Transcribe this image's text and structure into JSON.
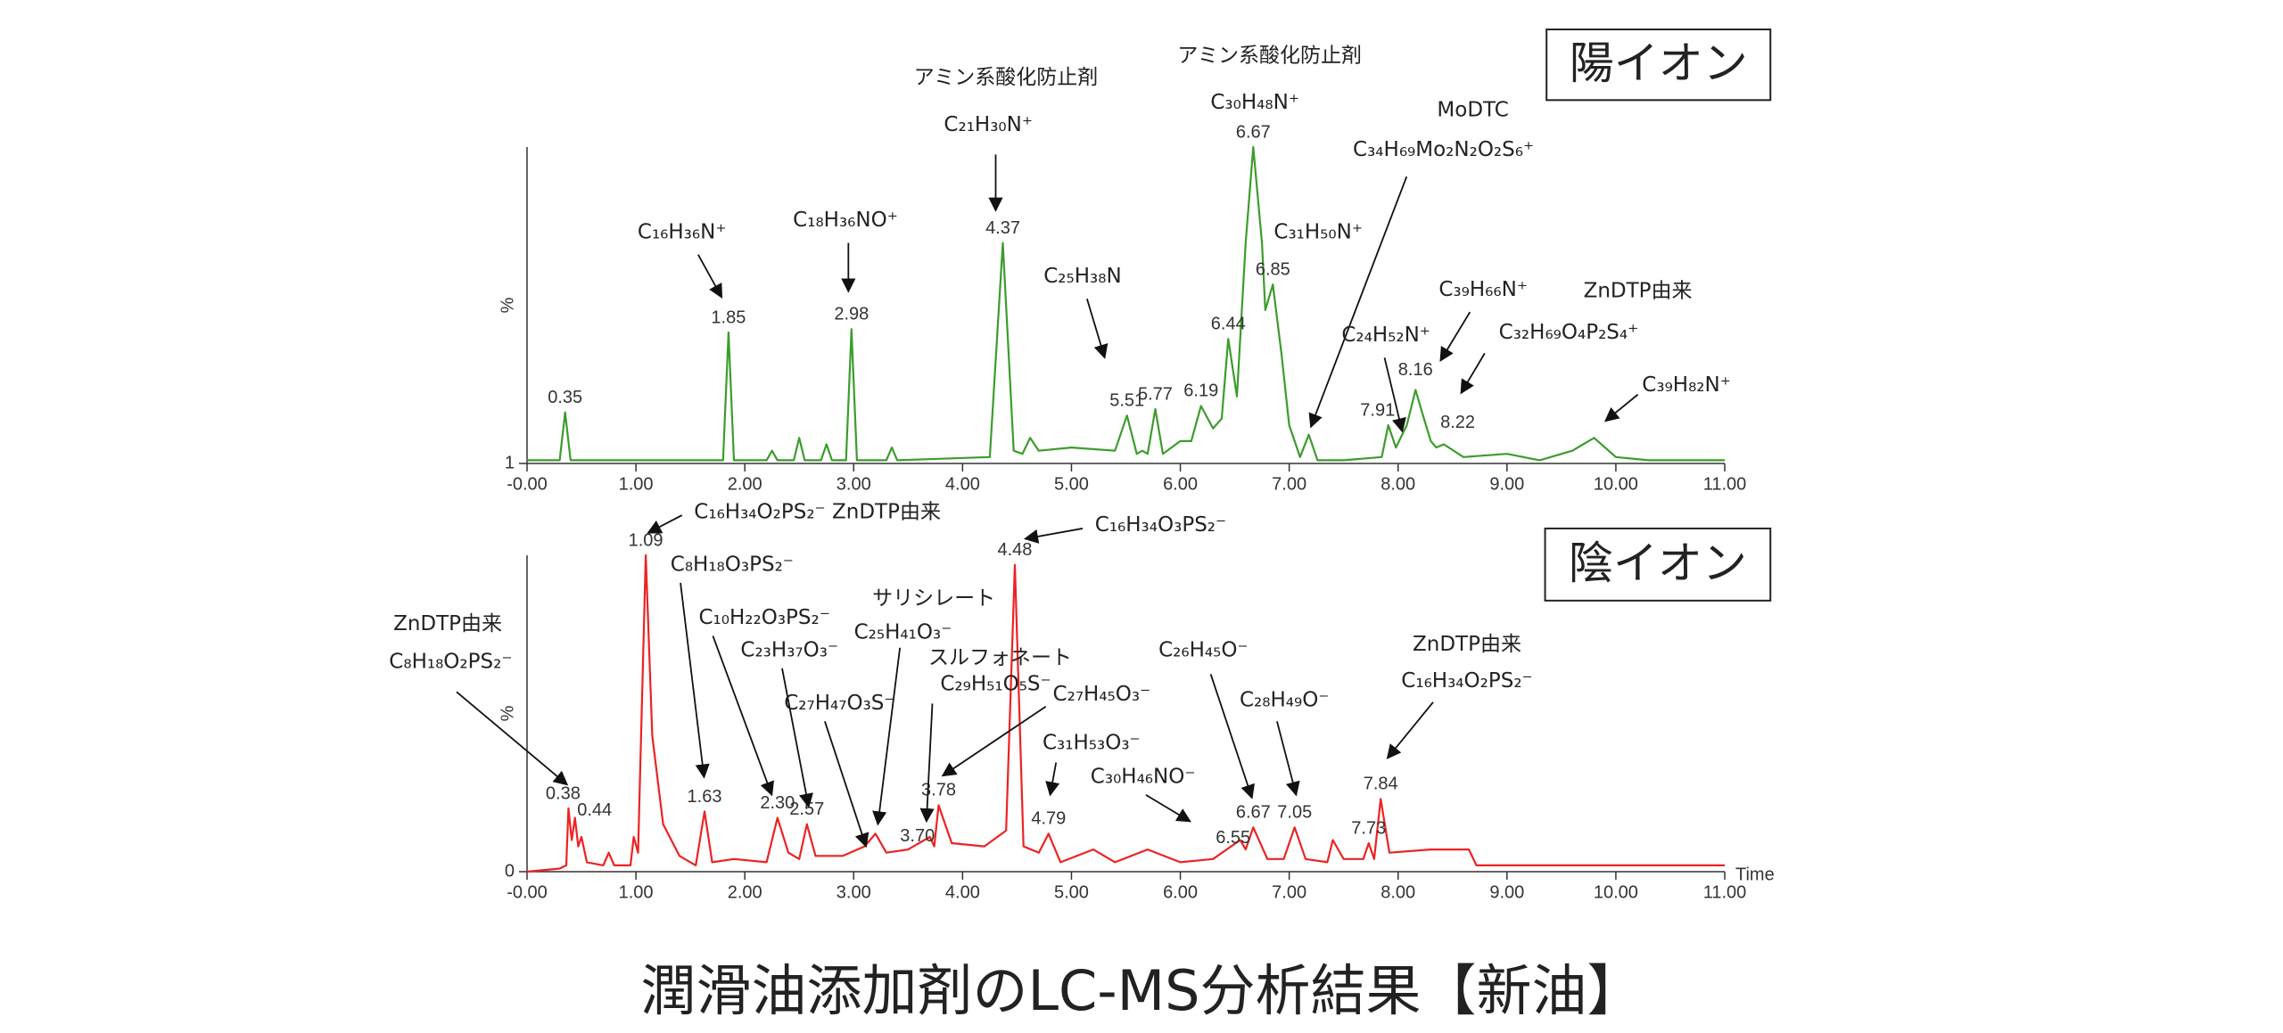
{
  "caption": "潤滑油添加剤のLC-MS分析結果【新油】",
  "chart_data": [
    {
      "type": "line",
      "title": "陽イオン",
      "y_label": "%",
      "color": "#3c9c2c",
      "xlim": [
        0,
        11
      ],
      "ylim": [
        1,
        100
      ],
      "yticks": [
        1
      ],
      "xticks": [
        {
          "value": 0,
          "label": "-0.00"
        },
        {
          "value": 1,
          "label": "1.00"
        },
        {
          "value": 2,
          "label": "2.00"
        },
        {
          "value": 3,
          "label": "3.00"
        },
        {
          "value": 4,
          "label": "4.00"
        },
        {
          "value": 5,
          "label": "5.00"
        },
        {
          "value": 6,
          "label": "6.00"
        },
        {
          "value": 7,
          "label": "7.00"
        },
        {
          "value": 8,
          "label": "8.00"
        },
        {
          "value": 9,
          "label": "9.00"
        },
        {
          "value": 10,
          "label": "10.00"
        },
        {
          "value": 11,
          "label": "11.00"
        }
      ],
      "x": [
        0,
        0.3,
        0.35,
        0.4,
        1.8,
        1.85,
        1.9,
        2.2,
        2.25,
        2.3,
        2.45,
        2.5,
        2.55,
        2.7,
        2.75,
        2.8,
        2.93,
        2.98,
        3.03,
        3.3,
        3.35,
        3.4,
        4.25,
        4.37,
        4.47,
        4.55,
        4.62,
        4.7,
        5.0,
        5.4,
        5.51,
        5.6,
        5.65,
        5.7,
        5.77,
        5.84,
        6.0,
        6.1,
        6.19,
        6.3,
        6.38,
        6.44,
        6.52,
        6.6,
        6.67,
        6.75,
        6.78,
        6.85,
        6.93,
        7.0,
        7.1,
        7.18,
        7.26,
        7.5,
        7.85,
        7.91,
        7.98,
        8.08,
        8.16,
        8.22,
        8.3,
        8.35,
        8.42,
        8.6,
        9.0,
        9.3,
        9.6,
        9.8,
        10.0,
        10.3,
        11.0
      ],
      "values": [
        2,
        2,
        17,
        2,
        2,
        42,
        2,
        2,
        5,
        2,
        2,
        9,
        2,
        2,
        7,
        2,
        2,
        43,
        2,
        2,
        6,
        2,
        3,
        70,
        5,
        4,
        9,
        5,
        6,
        5,
        16,
        4,
        5,
        4,
        18,
        4,
        8,
        8,
        19,
        12,
        15,
        40,
        22,
        70,
        100,
        70,
        49,
        57,
        35,
        13,
        3,
        10,
        2,
        2,
        3,
        13,
        6,
        13,
        24,
        17,
        8,
        6,
        7,
        3,
        4,
        2,
        5,
        9,
        3,
        2,
        2
      ],
      "peak_labels": [
        {
          "x": 0.35,
          "y": 17,
          "label": "0.35"
        },
        {
          "x": 1.85,
          "y": 42,
          "label": "1.85"
        },
        {
          "x": 2.98,
          "y": 43,
          "label": "2.98"
        },
        {
          "x": 4.37,
          "y": 70,
          "label": "4.37"
        },
        {
          "x": 5.51,
          "y": 16,
          "label": "5.51"
        },
        {
          "x": 5.77,
          "y": 18,
          "label": "5.77"
        },
        {
          "x": 6.19,
          "y": 19,
          "label": "6.19"
        },
        {
          "x": 6.44,
          "y": 40,
          "label": "6.44"
        },
        {
          "x": 6.67,
          "y": 100,
          "label": "6.67"
        },
        {
          "x": 6.85,
          "y": 57,
          "label": "6.85"
        },
        {
          "x": 7.91,
          "y": 13,
          "label": "7.91"
        },
        {
          "x": 8.16,
          "y": 24,
          "label": "8.16"
        },
        {
          "x": 8.22,
          "y": 17,
          "label": "8.22"
        }
      ],
      "annotations": [
        {
          "lines": [
            "アミン系酸化防止剤",
            "C₂₁H₃₀N⁺"
          ]
        },
        {
          "lines": [
            "アミン系酸化防止剤",
            "C₃₀H₄₈N⁺"
          ]
        },
        {
          "lines": [
            "MoDTC",
            "C₃₄H₆₉Mo₂N₂O₂S₆⁺"
          ]
        },
        {
          "lines": [
            "C₁₆H₃₆N⁺"
          ]
        },
        {
          "lines": [
            "C₁₈H₃₆NO⁺"
          ]
        },
        {
          "lines": [
            "C₂₅H₃₈N"
          ]
        },
        {
          "lines": [
            "C₃₁H₅₀N⁺"
          ]
        },
        {
          "lines": [
            "C₂₄H₅₂N⁺"
          ]
        },
        {
          "lines": [
            "C₃₉H₆₆N⁺"
          ]
        },
        {
          "lines": [
            "ZnDTP由来",
            "C₃₂H₆₉O₄P₂S₄⁺"
          ]
        },
        {
          "lines": [
            "C₃₉H₈₂N⁺"
          ]
        }
      ]
    },
    {
      "type": "line",
      "title": "陰イオン",
      "y_label": "%",
      "x_label": "Time",
      "color": "#ee2222",
      "xlim": [
        0,
        11
      ],
      "ylim": [
        0,
        100
      ],
      "yticks": [
        0
      ],
      "xticks": [
        {
          "value": 0,
          "label": "-0.00"
        },
        {
          "value": 1,
          "label": "1.00"
        },
        {
          "value": 2,
          "label": "2.00"
        },
        {
          "value": 3,
          "label": "3.00"
        },
        {
          "value": 4,
          "label": "4.00"
        },
        {
          "value": 5,
          "label": "5.00"
        },
        {
          "value": 6,
          "label": "6.00"
        },
        {
          "value": 7,
          "label": "7.00"
        },
        {
          "value": 8,
          "label": "8.00"
        },
        {
          "value": 9,
          "label": "9.00"
        },
        {
          "value": 10,
          "label": "10.00"
        },
        {
          "value": 11,
          "label": "11.00"
        }
      ],
      "x": [
        0,
        0.3,
        0.36,
        0.38,
        0.41,
        0.44,
        0.47,
        0.5,
        0.55,
        0.7,
        0.75,
        0.8,
        0.95,
        0.98,
        1.02,
        1.09,
        1.15,
        1.25,
        1.4,
        1.55,
        1.63,
        1.7,
        1.9,
        2.2,
        2.3,
        2.4,
        2.5,
        2.57,
        2.65,
        2.9,
        3.1,
        3.2,
        3.3,
        3.5,
        3.7,
        3.74,
        3.78,
        3.9,
        4.2,
        4.4,
        4.48,
        4.56,
        4.7,
        4.79,
        4.9,
        5.2,
        5.4,
        5.7,
        6.0,
        6.3,
        6.55,
        6.6,
        6.67,
        6.8,
        6.95,
        7.05,
        7.15,
        7.35,
        7.4,
        7.5,
        7.68,
        7.73,
        7.78,
        7.84,
        7.92,
        8.3,
        8.65,
        8.72,
        9.5,
        11
      ],
      "values": [
        0,
        1,
        2,
        20,
        10,
        17,
        8,
        11,
        3,
        2,
        6,
        2,
        2,
        11,
        6,
        100,
        43,
        15,
        5,
        2,
        19,
        3,
        4,
        3,
        17,
        6,
        4,
        15,
        5,
        5,
        8,
        12,
        6,
        7,
        11,
        8,
        21,
        9,
        8,
        13,
        97,
        8,
        6,
        12,
        3,
        7,
        3,
        7,
        3,
        4,
        10,
        7,
        14,
        4,
        4,
        14,
        4,
        3,
        10,
        4,
        4,
        9,
        4,
        23,
        6,
        7,
        7,
        2,
        2,
        2
      ],
      "peak_labels": [
        {
          "x": 0.38,
          "y": 20,
          "label": "0.38"
        },
        {
          "x": 0.44,
          "y": 17,
          "label": "0.44"
        },
        {
          "x": 1.09,
          "y": 100,
          "label": "1.09"
        },
        {
          "x": 1.63,
          "y": 19,
          "label": "1.63"
        },
        {
          "x": 2.3,
          "y": 17,
          "label": "2.30"
        },
        {
          "x": 2.57,
          "y": 15,
          "label": "2.57"
        },
        {
          "x": 3.7,
          "y": 11,
          "label": "3.70"
        },
        {
          "x": 3.78,
          "y": 21,
          "label": "3.78"
        },
        {
          "x": 4.48,
          "y": 97,
          "label": "4.48"
        },
        {
          "x": 4.79,
          "y": 12,
          "label": "4.79"
        },
        {
          "x": 6.55,
          "y": 10,
          "label": "6.55"
        },
        {
          "x": 6.67,
          "y": 14,
          "label": "6.67"
        },
        {
          "x": 7.05,
          "y": 14,
          "label": "7.05"
        },
        {
          "x": 7.73,
          "y": 9,
          "label": "7.73"
        },
        {
          "x": 7.84,
          "y": 23,
          "label": "7.84"
        }
      ],
      "annotations": [
        {
          "lines": [
            "C₁₆H₃₄O₂PS₂⁻ ZnDTP由来"
          ]
        },
        {
          "lines": [
            "C₁₆H₃₄O₃PS₂⁻"
          ]
        },
        {
          "lines": [
            "C₈H₁₈O₃PS₂⁻"
          ]
        },
        {
          "lines": [
            "ZnDTP由来",
            "C₈H₁₈O₂PS₂⁻"
          ]
        },
        {
          "lines": [
            "C₁₀H₂₂O₃PS₂⁻"
          ]
        },
        {
          "lines": [
            "C₂₃H₃₇O₃⁻"
          ]
        },
        {
          "lines": [
            "サリシレート",
            "C₂₅H₄₁O₃⁻"
          ]
        },
        {
          "lines": [
            "スルフォネート",
            "C₂₉H₅₁O₅S⁻"
          ]
        },
        {
          "lines": [
            "C₂₇H₄₇O₃S⁻"
          ]
        },
        {
          "lines": [
            "C₂₇H₄₅O₃⁻"
          ]
        },
        {
          "lines": [
            "C₃₁H₅₃O₃⁻"
          ]
        },
        {
          "lines": [
            "C₃₀H₄₆NO⁻"
          ]
        },
        {
          "lines": [
            "C₂₆H₄₅O⁻"
          ]
        },
        {
          "lines": [
            "C₂₈H₄₉O⁻"
          ]
        },
        {
          "lines": [
            "ZnDTP由来",
            "C₁₆H₃₄O₂PS₂⁻"
          ]
        }
      ]
    }
  ]
}
